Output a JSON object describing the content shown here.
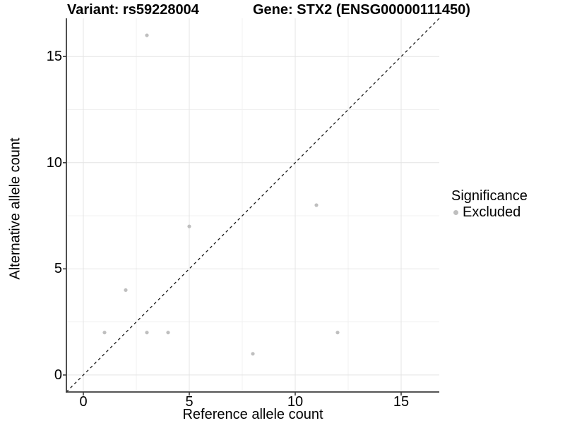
{
  "chart_data": {
    "type": "scatter",
    "title_left": "Variant: rs59228004",
    "title_right": "Gene: STX2 (ENSG00000111450)",
    "xlabel": "Reference allele count",
    "ylabel": "Alternative allele count",
    "xlim": [
      -0.8,
      16.8
    ],
    "ylim": [
      -0.8,
      16.8
    ],
    "x_ticks": [
      0,
      5,
      10,
      15
    ],
    "y_ticks": [
      0,
      5,
      10,
      15
    ],
    "x_minor_ticks": [
      2.5,
      7.5,
      12.5
    ],
    "y_minor_ticks": [
      2.5,
      7.5,
      12.5
    ],
    "grid": true,
    "legend_position": "right",
    "series": [
      {
        "name": "Excluded",
        "color": "#bfbfbf",
        "points": [
          [
            3,
            16
          ],
          [
            11,
            8
          ],
          [
            5,
            7
          ],
          [
            2,
            4
          ],
          [
            1,
            2
          ],
          [
            3,
            2
          ],
          [
            4,
            2
          ],
          [
            12,
            2
          ],
          [
            8,
            1
          ]
        ]
      }
    ],
    "reference_line": {
      "type": "identity",
      "slope": 1,
      "intercept": 0,
      "style": "dashed",
      "color": "#1a1a1a"
    },
    "legend": {
      "title": "Significance",
      "items": [
        {
          "label": "Excluded",
          "color": "#bfbfbf"
        }
      ]
    }
  },
  "colors": {
    "background": "#ffffff",
    "major_grid": "#e4e4e4",
    "minor_grid": "#f0f0f0",
    "axis_line": "#3c3c3c",
    "point": "#bfbfbf",
    "text": "#000000"
  }
}
